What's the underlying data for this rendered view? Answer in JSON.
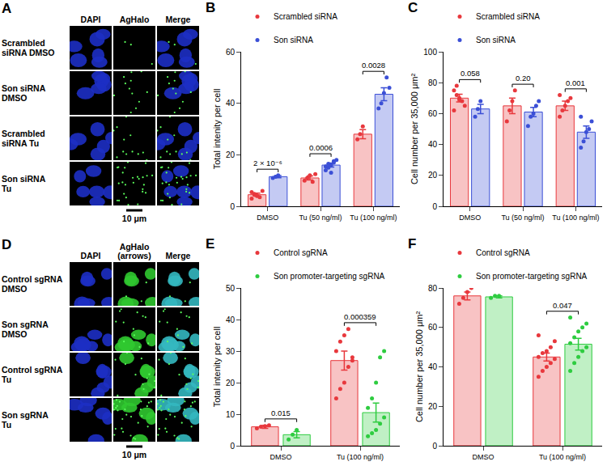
{
  "image_panels": [
    {
      "panel_label": "A",
      "columns": [
        [
          "DAPI"
        ],
        [
          "AgHalo"
        ],
        [
          "Merge"
        ]
      ],
      "rows": [
        [
          "Scrambled",
          "siRNA DMSO"
        ],
        [
          "Son siRNA",
          "DMSO"
        ],
        [
          "Scrambled",
          "siRNA Tu"
        ],
        [
          "Son siRNA",
          "Tu"
        ]
      ],
      "scale_bar": "10 μm"
    },
    {
      "panel_label": "D",
      "columns": [
        [
          "DAPI"
        ],
        [
          "AgHalo",
          "(arrows)"
        ],
        [
          "Merge"
        ]
      ],
      "rows": [
        [
          "Control sgRNA",
          "DMSO"
        ],
        [
          "Son sgRNA",
          "DMSO"
        ],
        [
          "Control sgRNA",
          "Tu"
        ],
        [
          "Son sgRNA",
          "Tu"
        ]
      ],
      "scale_bar": "10 μm"
    }
  ],
  "chart_data": [
    {
      "panel_label": "B",
      "type": "bar",
      "y_label": "Total intenity per cell",
      "categories": [
        "DMSO",
        "Tu (50 ng/ml)",
        "Tu (100 ng/ml)"
      ],
      "series": [
        {
          "name": "Scrambled siRNA",
          "color": "#e8383d",
          "values": [
            4.5,
            11,
            28
          ],
          "errors": [
            0.6,
            0.8,
            1.8
          ],
          "points": [
            [
              5.5,
              4.8,
              4.2,
              3.5,
              6.0,
              3.0,
              4.5,
              4.0
            ],
            [
              10,
              11,
              12,
              9.5,
              12.5
            ],
            [
              26,
              28,
              31
            ]
          ]
        },
        {
          "name": "Son siRNA",
          "color": "#3b4fd6",
          "values": [
            11.5,
            16,
            43.5
          ],
          "errors": [
            0.4,
            0.8,
            2.5
          ],
          "points": [
            [
              11,
              11.5,
              12
            ],
            [
              14,
              15,
              16,
              17,
              18,
              15.5,
              16.5,
              13,
              17.5
            ],
            [
              38,
              40,
              44,
              50,
              46
            ]
          ]
        }
      ],
      "ylim": [
        0,
        60
      ],
      "yticks": [
        0,
        20,
        40,
        60
      ],
      "grid": false,
      "legend": "top left",
      "comparisons": [
        {
          "category": "DMSO",
          "label": "2 × 10⁻⁶"
        },
        {
          "category": "Tu (50 ng/ml)",
          "label": "0.0006"
        },
        {
          "category": "Tu (100 ng/ml)",
          "label": "0.0028"
        }
      ]
    },
    {
      "panel_label": "C",
      "type": "bar",
      "y_label": "Cell number per 35,000 μm²",
      "categories": [
        "DMSO",
        "Tu (50 ng/ml)",
        "Tu (100 ng/ml)"
      ],
      "series": [
        {
          "name": "Scrambled siRNA",
          "color": "#e8383d",
          "values": [
            70,
            65,
            65
          ],
          "errors": [
            2.5,
            5,
            3
          ],
          "points": [
            [
              75,
              72,
              70,
              68,
              65,
              62,
              78,
              69
            ],
            [
              55,
              62,
              68,
              75
            ],
            [
              58,
              62,
              65,
              68,
              70,
              72
            ]
          ]
        },
        {
          "name": "Son siRNA",
          "color": "#3b4fd6",
          "values": [
            63,
            61,
            48
          ],
          "errors": [
            3,
            3,
            4
          ],
          "points": [
            [
              58,
              63,
              68
            ],
            [
              52,
              58,
              60,
              65,
              68
            ],
            [
              38,
              42,
              48,
              50,
              55,
              58
            ]
          ]
        }
      ],
      "ylim": [
        0,
        100
      ],
      "yticks": [
        0,
        20,
        40,
        60,
        80,
        100
      ],
      "grid": false,
      "legend": "top left",
      "comparisons": [
        {
          "category": "DMSO",
          "label": "0.058"
        },
        {
          "category": "Tu (50 ng/ml)",
          "label": "0.20"
        },
        {
          "category": "Tu (100 ng/ml)",
          "label": "0.001"
        }
      ]
    },
    {
      "panel_label": "E",
      "type": "bar",
      "y_label": "Total intenity per cell",
      "categories": [
        "DMSO",
        "Tu (100 ng/ml)"
      ],
      "series": [
        {
          "name": "Control sgRNA",
          "color": "#e8383d",
          "values": [
            6,
            27
          ],
          "errors": [
            0.5,
            3
          ],
          "points": [
            [
              5.5,
              6,
              6.2,
              6.5
            ],
            [
              15,
              18,
              20,
              25,
              28,
              30,
              33,
              35,
              37,
              27
            ]
          ]
        },
        {
          "name": "Son promoter-targeting sgRNA",
          "color": "#2ecc40",
          "values": [
            3.5,
            10.5
          ],
          "errors": [
            1,
            3
          ],
          "points": [
            [
              2,
              3.5,
              5
            ],
            [
              3,
              4,
              5,
              7,
              9,
              12,
              15,
              20,
              28,
              30
            ]
          ]
        }
      ],
      "ylim": [
        0,
        50
      ],
      "yticks": [
        0,
        10,
        20,
        30,
        40,
        50
      ],
      "grid": false,
      "legend": "top left",
      "comparisons": [
        {
          "category": "DMSO",
          "label": "0.015"
        },
        {
          "category": "Tu (100 ng/ml)",
          "label": "0.000359"
        }
      ]
    },
    {
      "panel_label": "F",
      "type": "bar",
      "y_label": "Cell number per 35,000 μm²",
      "categories": [
        "DMSO",
        "Tu (100 ng/ml)"
      ],
      "series": [
        {
          "name": "Control sgRNA",
          "color": "#e8383d",
          "values": [
            76,
            45
          ],
          "errors": [
            2,
            2
          ],
          "points": [
            [
              72,
              75,
              78,
              80
            ],
            [
              35,
              38,
              40,
              42,
              44,
              45,
              47,
              48,
              50,
              53,
              56
            ]
          ]
        },
        {
          "name": "Son promoter-targeting sgRNA",
          "color": "#2ecc40",
          "values": [
            75.5,
            51.5
          ],
          "errors": [
            0.5,
            3
          ],
          "points": [
            [
              75,
              76,
              76
            ],
            [
              38,
              42,
              45,
              48,
              50,
              52,
              55,
              58,
              60,
              62,
              65
            ]
          ]
        }
      ],
      "ylim": [
        0,
        80
      ],
      "yticks": [
        0,
        20,
        40,
        60,
        80
      ],
      "grid": false,
      "legend": "top left",
      "comparisons": [
        {
          "category": "Tu (100 ng/ml)",
          "label": "0.047"
        }
      ]
    }
  ]
}
